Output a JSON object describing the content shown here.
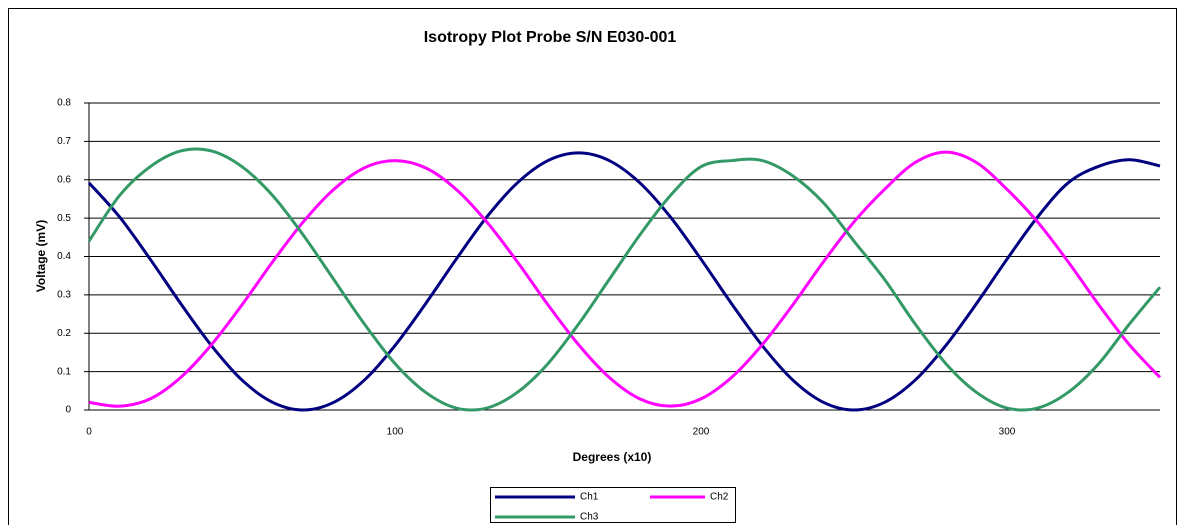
{
  "chart_data": {
    "type": "line",
    "title": "Isotropy Plot Probe S/N E030-001",
    "x_label": "Degrees (x10)",
    "y_label": "Voltage (mV)",
    "x": [
      0,
      10,
      20,
      30,
      40,
      50,
      60,
      70,
      80,
      90,
      100,
      110,
      120,
      130,
      140,
      150,
      160,
      170,
      180,
      190,
      200,
      210,
      220,
      230,
      240,
      250,
      260,
      270,
      280,
      290,
      300,
      310,
      320,
      330,
      340,
      350
    ],
    "series": [
      {
        "name": "Ch1",
        "color": "#000080",
        "values": [
          0.592,
          0.503,
          0.393,
          0.277,
          0.168,
          0.078,
          0.02,
          0,
          0.02,
          0.078,
          0.168,
          0.277,
          0.393,
          0.503,
          0.592,
          0.65,
          0.67,
          0.65,
          0.592,
          0.503,
          0.393,
          0.277,
          0.168,
          0.078,
          0.02,
          0,
          0.02,
          0.078,
          0.168,
          0.277,
          0.393,
          0.503,
          0.592,
          0.635,
          0.652,
          0.636
        ]
      },
      {
        "name": "Ch2",
        "color": "#ff00ff",
        "values": [
          0.02,
          0.01,
          0.029,
          0.085,
          0.17,
          0.274,
          0.386,
          0.49,
          0.575,
          0.631,
          0.65,
          0.631,
          0.575,
          0.49,
          0.386,
          0.274,
          0.17,
          0.085,
          0.029,
          0.01,
          0.029,
          0.085,
          0.17,
          0.274,
          0.386,
          0.49,
          0.575,
          0.645,
          0.672,
          0.645,
          0.575,
          0.49,
          0.386,
          0.274,
          0.17,
          0.085
        ]
      },
      {
        "name": "Ch3",
        "color": "#339966",
        "values": [
          0.44,
          0.559,
          0.634,
          0.675,
          0.675,
          0.634,
          0.559,
          0.456,
          0.34,
          0.224,
          0.121,
          0.046,
          0.005,
          0.005,
          0.046,
          0.121,
          0.224,
          0.34,
          0.456,
          0.559,
          0.634,
          0.65,
          0.65,
          0.61,
          0.54,
          0.44,
          0.34,
          0.224,
          0.121,
          0.046,
          0.005,
          0.005,
          0.046,
          0.121,
          0.224,
          0.32
        ]
      }
    ],
    "xlim": [
      0,
      350
    ],
    "xticks": [
      0,
      100,
      200,
      300
    ],
    "ylim": [
      0,
      0.8
    ],
    "yticks": [
      0,
      0.1,
      0.2,
      0.3,
      0.4,
      0.5,
      0.6,
      0.7,
      0.8
    ],
    "grid": true,
    "legend": "bottom"
  }
}
